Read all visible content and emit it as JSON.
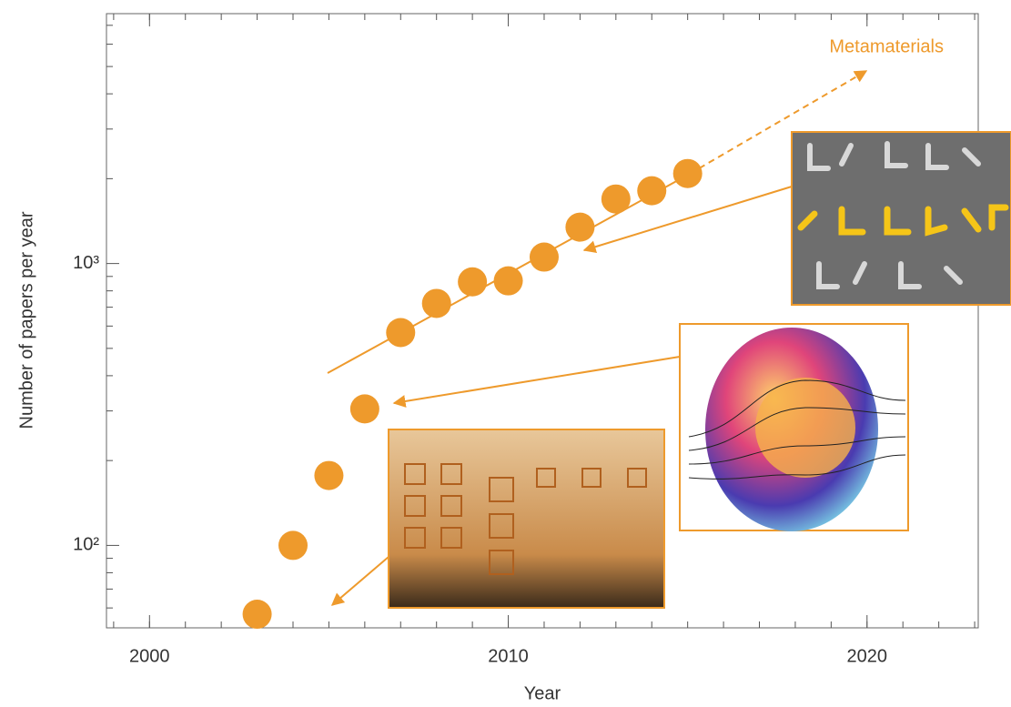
{
  "chart_data": {
    "type": "scatter",
    "x_label": "Year",
    "y_label": "Number of papers per year",
    "annotation": "Metamaterials",
    "log_y": true,
    "color": "#ee9a2c",
    "x": [
      2003,
      2004,
      2005,
      2006,
      2007,
      2008,
      2009,
      2010,
      2011,
      2012,
      2013,
      2014,
      2015
    ],
    "values": [
      57,
      100,
      177,
      305,
      569,
      722,
      861,
      868,
      1054,
      1346,
      1694,
      1812,
      2086
    ],
    "xlim": [
      1998.8,
      2023.1
    ],
    "xticks": [
      2000,
      2010,
      2020
    ],
    "ylim": [
      51,
      7700
    ],
    "yticks": [
      {
        "value": 100,
        "label": "10²"
      },
      {
        "value": 1000,
        "label": "10³"
      }
    ]
  }
}
